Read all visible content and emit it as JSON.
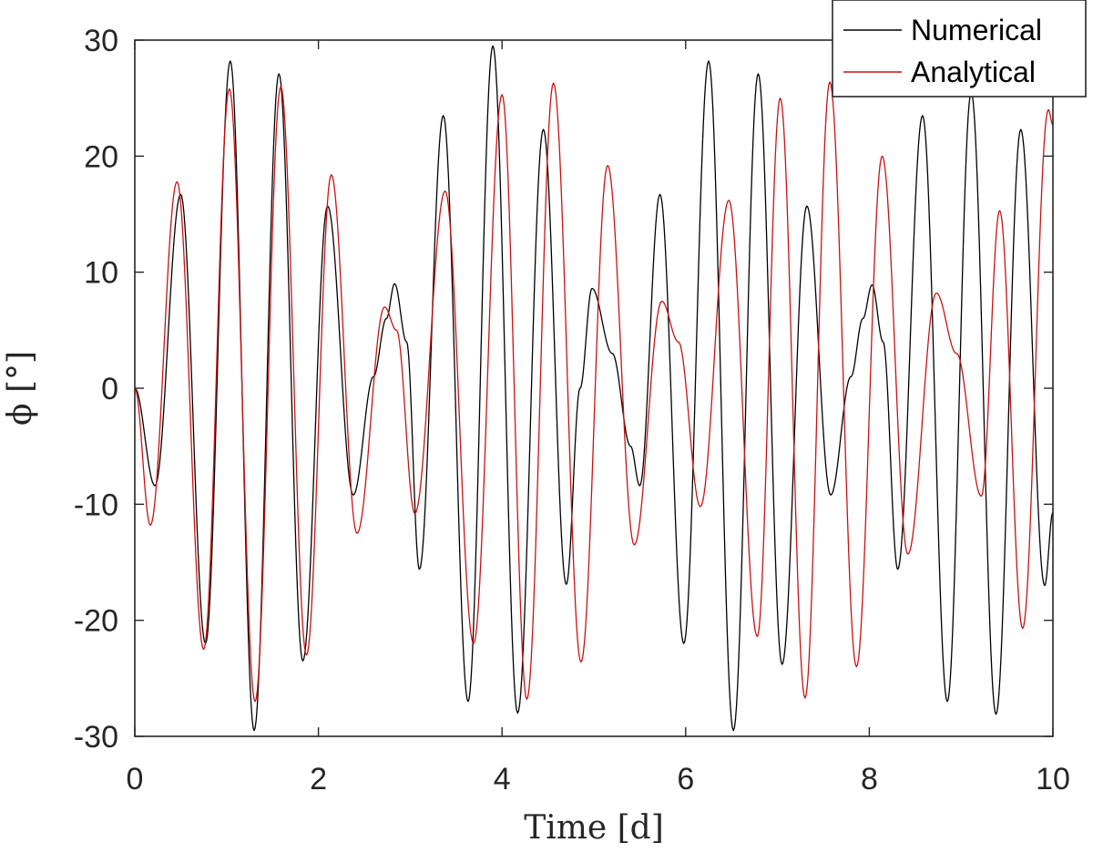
{
  "chart_data": {
    "type": "line",
    "title": "",
    "xlabel": "Time [d]",
    "ylabel": "ϕ [°]",
    "xlim": [
      0,
      10
    ],
    "ylim": [
      -30,
      30
    ],
    "x_ticks": [
      0,
      2,
      4,
      6,
      8,
      10
    ],
    "y_ticks": [
      -30,
      -20,
      -10,
      0,
      10,
      20,
      30
    ],
    "x_tick_labels": [
      "0",
      "2",
      "4",
      "6",
      "8",
      "10"
    ],
    "y_tick_labels": [
      "-30",
      "-20",
      "-10",
      "0",
      "10",
      "20",
      "30"
    ],
    "grid": false,
    "legend_position": "top-right",
    "series": [
      {
        "name": "Numerical",
        "color": "#000000",
        "points": [
          [
            0,
            0
          ],
          [
            0.22,
            -8.4
          ],
          [
            0.5,
            16.7
          ],
          [
            0.77,
            -22
          ],
          [
            1.04,
            28.2
          ],
          [
            1.3,
            -29.5
          ],
          [
            1.57,
            27.1
          ],
          [
            1.83,
            -23.5
          ],
          [
            2.1,
            15.7
          ],
          [
            2.38,
            -9.2
          ],
          [
            2.6,
            1
          ],
          [
            2.74,
            6
          ],
          [
            2.83,
            9
          ],
          [
            2.96,
            4
          ],
          [
            3.1,
            -15.6
          ],
          [
            3.36,
            23.5
          ],
          [
            3.63,
            -27
          ],
          [
            3.9,
            29.5
          ],
          [
            4.17,
            -28
          ],
          [
            4.45,
            22.3
          ],
          [
            4.7,
            -16.9
          ],
          [
            4.85,
            0
          ],
          [
            4.98,
            8.6
          ],
          [
            5.2,
            3
          ],
          [
            5.4,
            -5
          ],
          [
            5.5,
            -8.4
          ],
          [
            5.72,
            16.7
          ],
          [
            5.98,
            -22
          ],
          [
            6.25,
            28.2
          ],
          [
            6.52,
            -29.5
          ],
          [
            6.79,
            27.1
          ],
          [
            7.05,
            -23.8
          ],
          [
            7.32,
            15.7
          ],
          [
            7.58,
            -9.2
          ],
          [
            7.8,
            1
          ],
          [
            7.93,
            6
          ],
          [
            8.03,
            8.9
          ],
          [
            8.15,
            4
          ],
          [
            8.31,
            -15.6
          ],
          [
            8.58,
            23.5
          ],
          [
            8.85,
            -27
          ],
          [
            9.11,
            25.5
          ],
          [
            9.38,
            -28.1
          ],
          [
            9.65,
            22.3
          ],
          [
            9.91,
            -17
          ],
          [
            10,
            -10.7
          ]
        ]
      },
      {
        "name": "Analytical",
        "color": "#cc1111",
        "points": [
          [
            0,
            0
          ],
          [
            0.17,
            -11.8
          ],
          [
            0.46,
            17.8
          ],
          [
            0.75,
            -22.5
          ],
          [
            1.03,
            25.8
          ],
          [
            1.31,
            -27
          ],
          [
            1.59,
            26
          ],
          [
            1.87,
            -23
          ],
          [
            2.14,
            18.4
          ],
          [
            2.42,
            -12.5
          ],
          [
            2.72,
            7
          ],
          [
            2.85,
            5
          ],
          [
            3.05,
            -10.8
          ],
          [
            3.38,
            17
          ],
          [
            3.69,
            -22
          ],
          [
            4,
            25.3
          ],
          [
            4.27,
            -26.8
          ],
          [
            4.56,
            26.3
          ],
          [
            4.86,
            -23.6
          ],
          [
            5.15,
            19.2
          ],
          [
            5.44,
            -13.5
          ],
          [
            5.74,
            7.5
          ],
          [
            5.92,
            4
          ],
          [
            6.16,
            -10.2
          ],
          [
            6.47,
            16.2
          ],
          [
            6.78,
            -21.4
          ],
          [
            7.03,
            25
          ],
          [
            7.3,
            -26.7
          ],
          [
            7.57,
            26.4
          ],
          [
            7.86,
            -24
          ],
          [
            8.14,
            20
          ],
          [
            8.42,
            -14.3
          ],
          [
            8.73,
            8.2
          ],
          [
            8.95,
            3
          ],
          [
            9.22,
            -9.3
          ],
          [
            9.42,
            15.3
          ],
          [
            9.67,
            -20.7
          ],
          [
            9.95,
            24
          ],
          [
            10,
            22.7
          ]
        ]
      }
    ]
  }
}
